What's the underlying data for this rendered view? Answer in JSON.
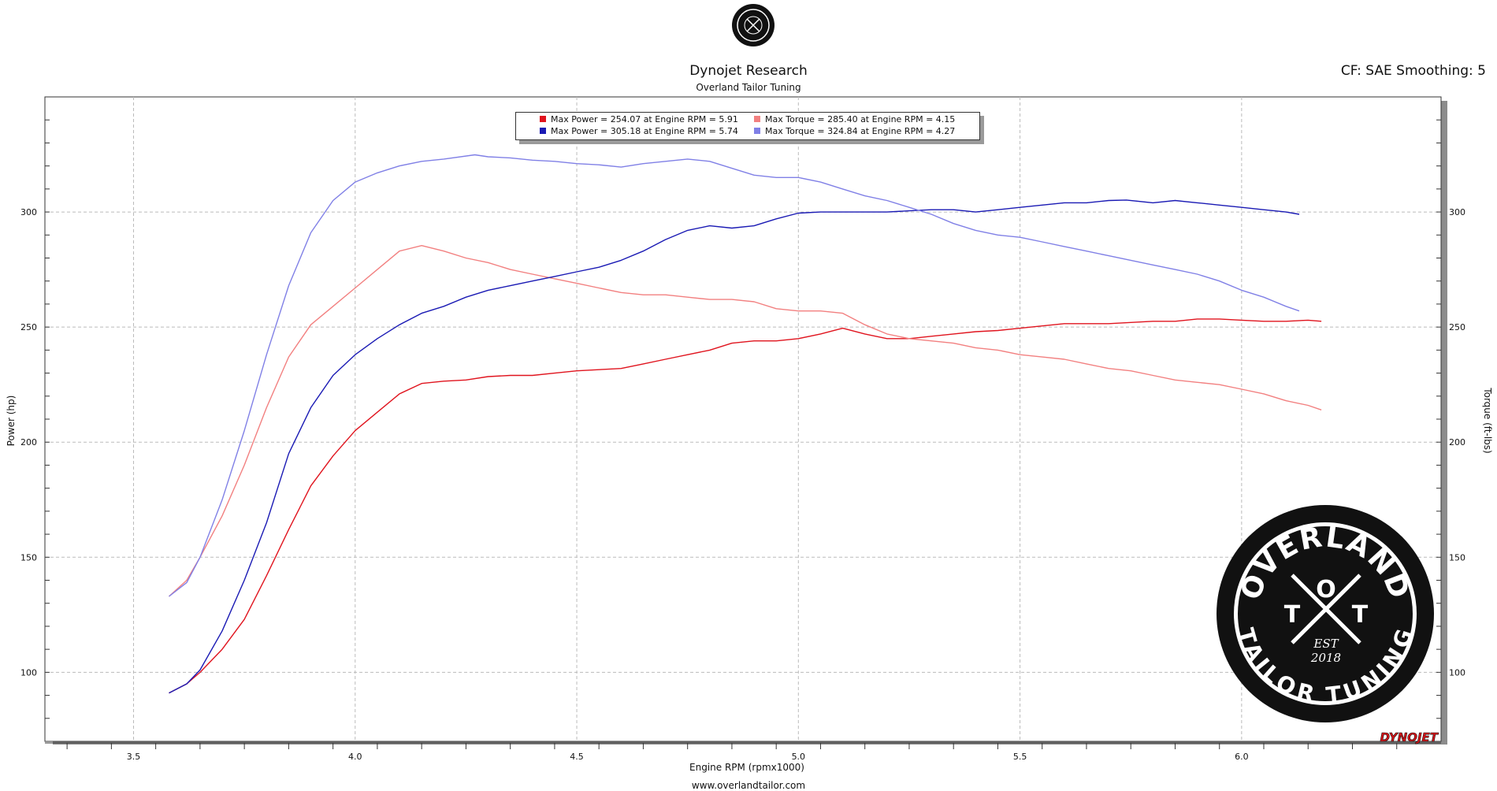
{
  "header": {
    "title": "Dynojet Research",
    "subtitle": "Overland Tailor Tuning",
    "right_info": "CF: SAE Smoothing: 5"
  },
  "footer": {
    "url": "www.overlandtailor.com"
  },
  "logo_text": "OVERLAND TAILOR TUNING EST 2018",
  "brand_text": "DYNOJET",
  "legend": [
    {
      "label": "Max Power = 254.07 at Engine RPM = 5.91",
      "color": "#e0141e"
    },
    {
      "label": "Max Torque = 285.40 at Engine RPM = 4.15",
      "color": "#f28080"
    },
    {
      "label": "Max Power = 305.18 at Engine RPM = 5.74",
      "color": "#1a1ab4"
    },
    {
      "label": "Max Torque = 324.84 at Engine RPM = 4.27",
      "color": "#8080e6"
    }
  ],
  "chart_data": {
    "type": "line",
    "xlabel": "Engine RPM (rpmx1000)",
    "ylabel": "Power (hp)",
    "y2label": "Torque (ft-lbs)",
    "xlim": [
      3.3,
      6.45
    ],
    "ylim": [
      70,
      350
    ],
    "xticks": [
      "3.5",
      "4.0",
      "4.5",
      "5.0",
      "5.5",
      "6.0"
    ],
    "yticks": [
      "100",
      "150",
      "200",
      "250",
      "300"
    ],
    "grid": true,
    "legend_position": "top-center",
    "series": [
      {
        "name": "Max Power = 254.07 at Engine RPM = 5.91",
        "color": "#e0141e",
        "points": [
          [
            3.58,
            91
          ],
          [
            3.62,
            95
          ],
          [
            3.65,
            100
          ],
          [
            3.7,
            110
          ],
          [
            3.75,
            123
          ],
          [
            3.8,
            142
          ],
          [
            3.85,
            162
          ],
          [
            3.9,
            181
          ],
          [
            3.95,
            194
          ],
          [
            4.0,
            205
          ],
          [
            4.05,
            213
          ],
          [
            4.1,
            221
          ],
          [
            4.15,
            225.5
          ],
          [
            4.2,
            226.5
          ],
          [
            4.25,
            227
          ],
          [
            4.3,
            228.5
          ],
          [
            4.35,
            229
          ],
          [
            4.4,
            229
          ],
          [
            4.45,
            230
          ],
          [
            4.5,
            231
          ],
          [
            4.55,
            231.5
          ],
          [
            4.6,
            232
          ],
          [
            4.65,
            234
          ],
          [
            4.7,
            236
          ],
          [
            4.75,
            238
          ],
          [
            4.8,
            240
          ],
          [
            4.85,
            243
          ],
          [
            4.9,
            244
          ],
          [
            4.95,
            244
          ],
          [
            5.0,
            245
          ],
          [
            5.05,
            247
          ],
          [
            5.1,
            249.5
          ],
          [
            5.15,
            247
          ],
          [
            5.2,
            245
          ],
          [
            5.25,
            245
          ],
          [
            5.3,
            246
          ],
          [
            5.35,
            247
          ],
          [
            5.4,
            248
          ],
          [
            5.45,
            248.5
          ],
          [
            5.5,
            249.5
          ],
          [
            5.55,
            250.5
          ],
          [
            5.6,
            251.5
          ],
          [
            5.65,
            251.5
          ],
          [
            5.7,
            251.5
          ],
          [
            5.75,
            252
          ],
          [
            5.8,
            252.5
          ],
          [
            5.85,
            252.5
          ],
          [
            5.9,
            253.5
          ],
          [
            5.95,
            253.5
          ],
          [
            6.0,
            253
          ],
          [
            6.05,
            252.5
          ],
          [
            6.1,
            252.5
          ],
          [
            6.15,
            253
          ],
          [
            6.18,
            252.5
          ]
        ]
      },
      {
        "name": "Max Torque = 285.40 at Engine RPM = 4.15",
        "color": "#f28080",
        "points": [
          [
            3.58,
            133
          ],
          [
            3.62,
            140
          ],
          [
            3.65,
            150
          ],
          [
            3.7,
            168
          ],
          [
            3.75,
            190
          ],
          [
            3.8,
            215
          ],
          [
            3.85,
            237
          ],
          [
            3.9,
            251
          ],
          [
            3.95,
            259
          ],
          [
            4.0,
            267
          ],
          [
            4.05,
            275
          ],
          [
            4.1,
            283
          ],
          [
            4.15,
            285.4
          ],
          [
            4.2,
            283
          ],
          [
            4.25,
            280
          ],
          [
            4.3,
            278
          ],
          [
            4.35,
            275
          ],
          [
            4.4,
            273
          ],
          [
            4.45,
            271
          ],
          [
            4.5,
            269
          ],
          [
            4.55,
            267
          ],
          [
            4.6,
            265
          ],
          [
            4.65,
            264
          ],
          [
            4.7,
            264
          ],
          [
            4.75,
            263
          ],
          [
            4.8,
            262
          ],
          [
            4.85,
            262
          ],
          [
            4.9,
            261
          ],
          [
            4.95,
            258
          ],
          [
            5.0,
            257
          ],
          [
            5.05,
            257
          ],
          [
            5.1,
            256
          ],
          [
            5.15,
            251
          ],
          [
            5.2,
            247
          ],
          [
            5.25,
            245
          ],
          [
            5.3,
            244
          ],
          [
            5.35,
            243
          ],
          [
            5.4,
            241
          ],
          [
            5.45,
            240
          ],
          [
            5.5,
            238
          ],
          [
            5.55,
            237
          ],
          [
            5.6,
            236
          ],
          [
            5.65,
            234
          ],
          [
            5.7,
            232
          ],
          [
            5.75,
            231
          ],
          [
            5.8,
            229
          ],
          [
            5.85,
            227
          ],
          [
            5.9,
            226
          ],
          [
            5.95,
            225
          ],
          [
            6.0,
            223
          ],
          [
            6.05,
            221
          ],
          [
            6.1,
            218
          ],
          [
            6.15,
            216
          ],
          [
            6.18,
            214
          ]
        ]
      },
      {
        "name": "Max Power = 305.18 at Engine RPM = 5.74",
        "color": "#1a1ab4",
        "points": [
          [
            3.58,
            91
          ],
          [
            3.62,
            95
          ],
          [
            3.65,
            101
          ],
          [
            3.7,
            118
          ],
          [
            3.75,
            140
          ],
          [
            3.8,
            165
          ],
          [
            3.85,
            195
          ],
          [
            3.9,
            215
          ],
          [
            3.95,
            229
          ],
          [
            4.0,
            238
          ],
          [
            4.05,
            245
          ],
          [
            4.1,
            251
          ],
          [
            4.15,
            256
          ],
          [
            4.2,
            259
          ],
          [
            4.25,
            263
          ],
          [
            4.3,
            266
          ],
          [
            4.35,
            268
          ],
          [
            4.4,
            270
          ],
          [
            4.45,
            272
          ],
          [
            4.5,
            274
          ],
          [
            4.55,
            276
          ],
          [
            4.6,
            279
          ],
          [
            4.65,
            283
          ],
          [
            4.7,
            288
          ],
          [
            4.75,
            292
          ],
          [
            4.8,
            294
          ],
          [
            4.85,
            293
          ],
          [
            4.9,
            294
          ],
          [
            4.95,
            297
          ],
          [
            5.0,
            299.5
          ],
          [
            5.05,
            300
          ],
          [
            5.1,
            300
          ],
          [
            5.15,
            300
          ],
          [
            5.2,
            300
          ],
          [
            5.25,
            300.5
          ],
          [
            5.3,
            301
          ],
          [
            5.35,
            301
          ],
          [
            5.4,
            300
          ],
          [
            5.45,
            301
          ],
          [
            5.5,
            302
          ],
          [
            5.55,
            303
          ],
          [
            5.6,
            304
          ],
          [
            5.65,
            304
          ],
          [
            5.7,
            305
          ],
          [
            5.74,
            305.18
          ],
          [
            5.8,
            304
          ],
          [
            5.85,
            305
          ],
          [
            5.9,
            304
          ],
          [
            5.95,
            303
          ],
          [
            6.0,
            302
          ],
          [
            6.05,
            301
          ],
          [
            6.1,
            300
          ],
          [
            6.13,
            299
          ]
        ]
      },
      {
        "name": "Max Torque = 324.84 at Engine RPM = 4.27",
        "color": "#8080e6",
        "points": [
          [
            3.58,
            133
          ],
          [
            3.62,
            139
          ],
          [
            3.65,
            150
          ],
          [
            3.7,
            175
          ],
          [
            3.75,
            205
          ],
          [
            3.8,
            238
          ],
          [
            3.85,
            268
          ],
          [
            3.9,
            291
          ],
          [
            3.95,
            305
          ],
          [
            4.0,
            313
          ],
          [
            4.05,
            317
          ],
          [
            4.1,
            320
          ],
          [
            4.15,
            322
          ],
          [
            4.2,
            323
          ],
          [
            4.27,
            324.84
          ],
          [
            4.3,
            324
          ],
          [
            4.35,
            323.5
          ],
          [
            4.4,
            322.5
          ],
          [
            4.45,
            322
          ],
          [
            4.5,
            321
          ],
          [
            4.55,
            320.5
          ],
          [
            4.6,
            319.5
          ],
          [
            4.65,
            321
          ],
          [
            4.7,
            322
          ],
          [
            4.75,
            323
          ],
          [
            4.8,
            322
          ],
          [
            4.85,
            319
          ],
          [
            4.9,
            316
          ],
          [
            4.95,
            315
          ],
          [
            5.0,
            315
          ],
          [
            5.05,
            313
          ],
          [
            5.1,
            310
          ],
          [
            5.15,
            307
          ],
          [
            5.2,
            305
          ],
          [
            5.25,
            302
          ],
          [
            5.3,
            299
          ],
          [
            5.35,
            295
          ],
          [
            5.4,
            292
          ],
          [
            5.45,
            290
          ],
          [
            5.5,
            289
          ],
          [
            5.55,
            287
          ],
          [
            5.6,
            285
          ],
          [
            5.65,
            283
          ],
          [
            5.7,
            281
          ],
          [
            5.75,
            279
          ],
          [
            5.8,
            277
          ],
          [
            5.85,
            275
          ],
          [
            5.9,
            273
          ],
          [
            5.95,
            270
          ],
          [
            6.0,
            266
          ],
          [
            6.05,
            263
          ],
          [
            6.1,
            259
          ],
          [
            6.13,
            257
          ]
        ]
      }
    ]
  }
}
